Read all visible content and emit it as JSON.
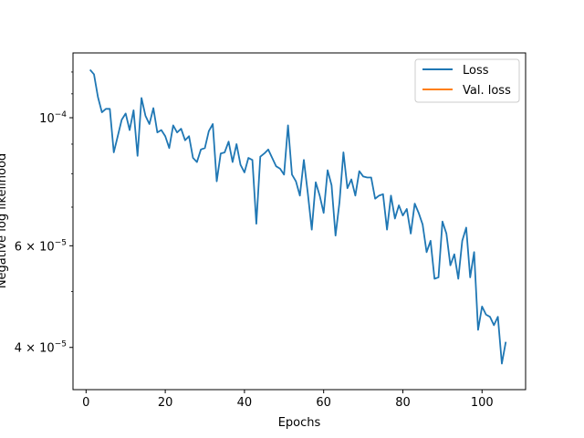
{
  "chart_data": {
    "type": "line",
    "title": "",
    "xlabel": "Epochs",
    "ylabel": "Negative log likelihood",
    "y_scale": "log",
    "xlim": [
      -3.3,
      111
    ],
    "ylim": [
      3.38e-05,
      0.0001295
    ],
    "x_ticks": [
      0,
      20,
      40,
      60,
      80,
      100
    ],
    "x_tick_labels": [
      "0",
      "20",
      "40",
      "60",
      "80",
      "100"
    ],
    "y_ticks": [
      0.0001,
      6e-05,
      4e-05
    ],
    "y_tick_labels": [
      {
        "base": "10",
        "exp": "−4"
      },
      {
        "base": "6 × 10",
        "exp": "−5"
      },
      {
        "base": "4 × 10",
        "exp": "−5"
      }
    ],
    "grid": false,
    "legend": {
      "location": "top-right",
      "entries": [
        "Loss",
        "Val. loss"
      ]
    },
    "series": [
      {
        "name": "Loss",
        "color": "#1f77b4",
        "x": [
          1,
          2,
          3,
          4,
          5,
          6,
          7,
          8,
          9,
          10,
          11,
          12,
          13,
          14,
          15,
          16,
          17,
          18,
          19,
          20,
          21,
          22,
          23,
          24,
          25,
          26,
          27,
          28,
          29,
          30,
          31,
          32,
          33,
          34,
          35,
          36,
          37,
          38,
          39,
          40,
          41,
          42,
          43,
          44,
          45,
          46,
          47,
          48,
          49,
          50,
          51,
          52,
          53,
          54,
          55,
          56,
          57,
          58,
          59,
          60,
          61,
          62,
          63,
          64,
          65,
          66,
          67,
          68,
          69,
          70,
          71,
          72,
          73,
          74,
          75,
          76,
          77,
          78,
          79,
          80,
          81,
          82,
          83,
          84,
          85,
          86,
          87,
          88,
          89,
          90,
          91,
          92,
          93,
          94,
          95,
          96,
          97,
          98,
          99,
          100,
          101,
          102,
          103,
          104,
          105,
          106
        ],
        "y": [
          0.0001211,
          0.0001189,
          0.0001086,
          0.0001022,
          0.0001036,
          0.0001036,
          8.71e-05,
          9.29e-05,
          9.92e-05,
          0.0001017,
          9.52e-05,
          0.000103,
          8.59e-05,
          0.0001082,
          0.0001008,
          9.75e-05,
          0.0001039,
          9.43e-05,
          9.52e-05,
          9.29e-05,
          8.86e-05,
          9.7e-05,
          9.43e-05,
          9.57e-05,
          9.14e-05,
          9.29e-05,
          8.52e-05,
          8.38e-05,
          8.81e-05,
          8.86e-05,
          9.48e-05,
          9.75e-05,
          7.76e-05,
          8.67e-05,
          8.71e-05,
          9.09e-05,
          8.38e-05,
          9e-05,
          8.29e-05,
          8.04e-05,
          8.52e-05,
          8.45e-05,
          6.55e-05,
          8.56e-05,
          8.67e-05,
          8.81e-05,
          8.52e-05,
          8.24e-05,
          8.16e-05,
          7.97e-05,
          9.7e-05,
          7.97e-05,
          7.76e-05,
          7.33e-05,
          8.45e-05,
          7.4e-05,
          6.4e-05,
          7.73e-05,
          7.33e-05,
          6.84e-05,
          8.11e-05,
          7.64e-05,
          6.25e-05,
          7.14e-05,
          8.71e-05,
          7.55e-05,
          7.82e-05,
          7.33e-05,
          8.08e-05,
          7.91e-05,
          7.88e-05,
          7.88e-05,
          7.24e-05,
          7.33e-05,
          7.37e-05,
          6.4e-05,
          7.33e-05,
          6.69e-05,
          7.05e-05,
          6.77e-05,
          6.95e-05,
          6.3e-05,
          7.1e-05,
          6.84e-05,
          6.53e-05,
          5.85e-05,
          6.12e-05,
          5.26e-05,
          5.29e-05,
          6.61e-05,
          6.3e-05,
          5.55e-05,
          5.8e-05,
          5.26e-05,
          6.12e-05,
          6.45e-05,
          5.29e-05,
          5.85e-05,
          4.29e-05,
          4.71e-05,
          4.56e-05,
          4.52e-05,
          4.37e-05,
          4.52e-05,
          3.75e-05,
          4.09e-05
        ]
      },
      {
        "name": "Val. loss",
        "color": "#ff7f0e",
        "x": [],
        "y": []
      }
    ]
  }
}
